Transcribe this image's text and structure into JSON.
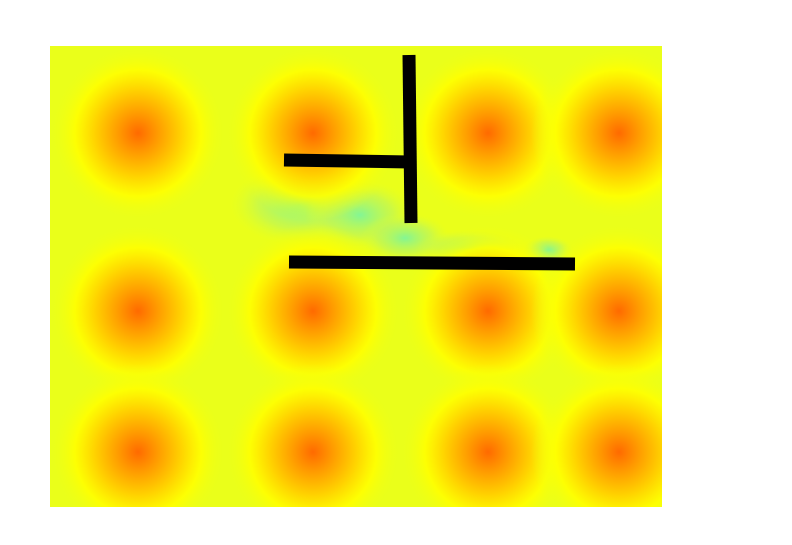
{
  "map": {
    "type": "heatmap",
    "colors": {
      "base": "#eaff1a",
      "hotspot_core": "#ff6a00",
      "hotspot_mid": "#ffb000",
      "hotspot_outer": "#ffff00",
      "cool_zone": "#8af58a",
      "wall": "#000000",
      "background": "#ffffff"
    },
    "hotspot_count": 12,
    "wall_count": 3
  }
}
